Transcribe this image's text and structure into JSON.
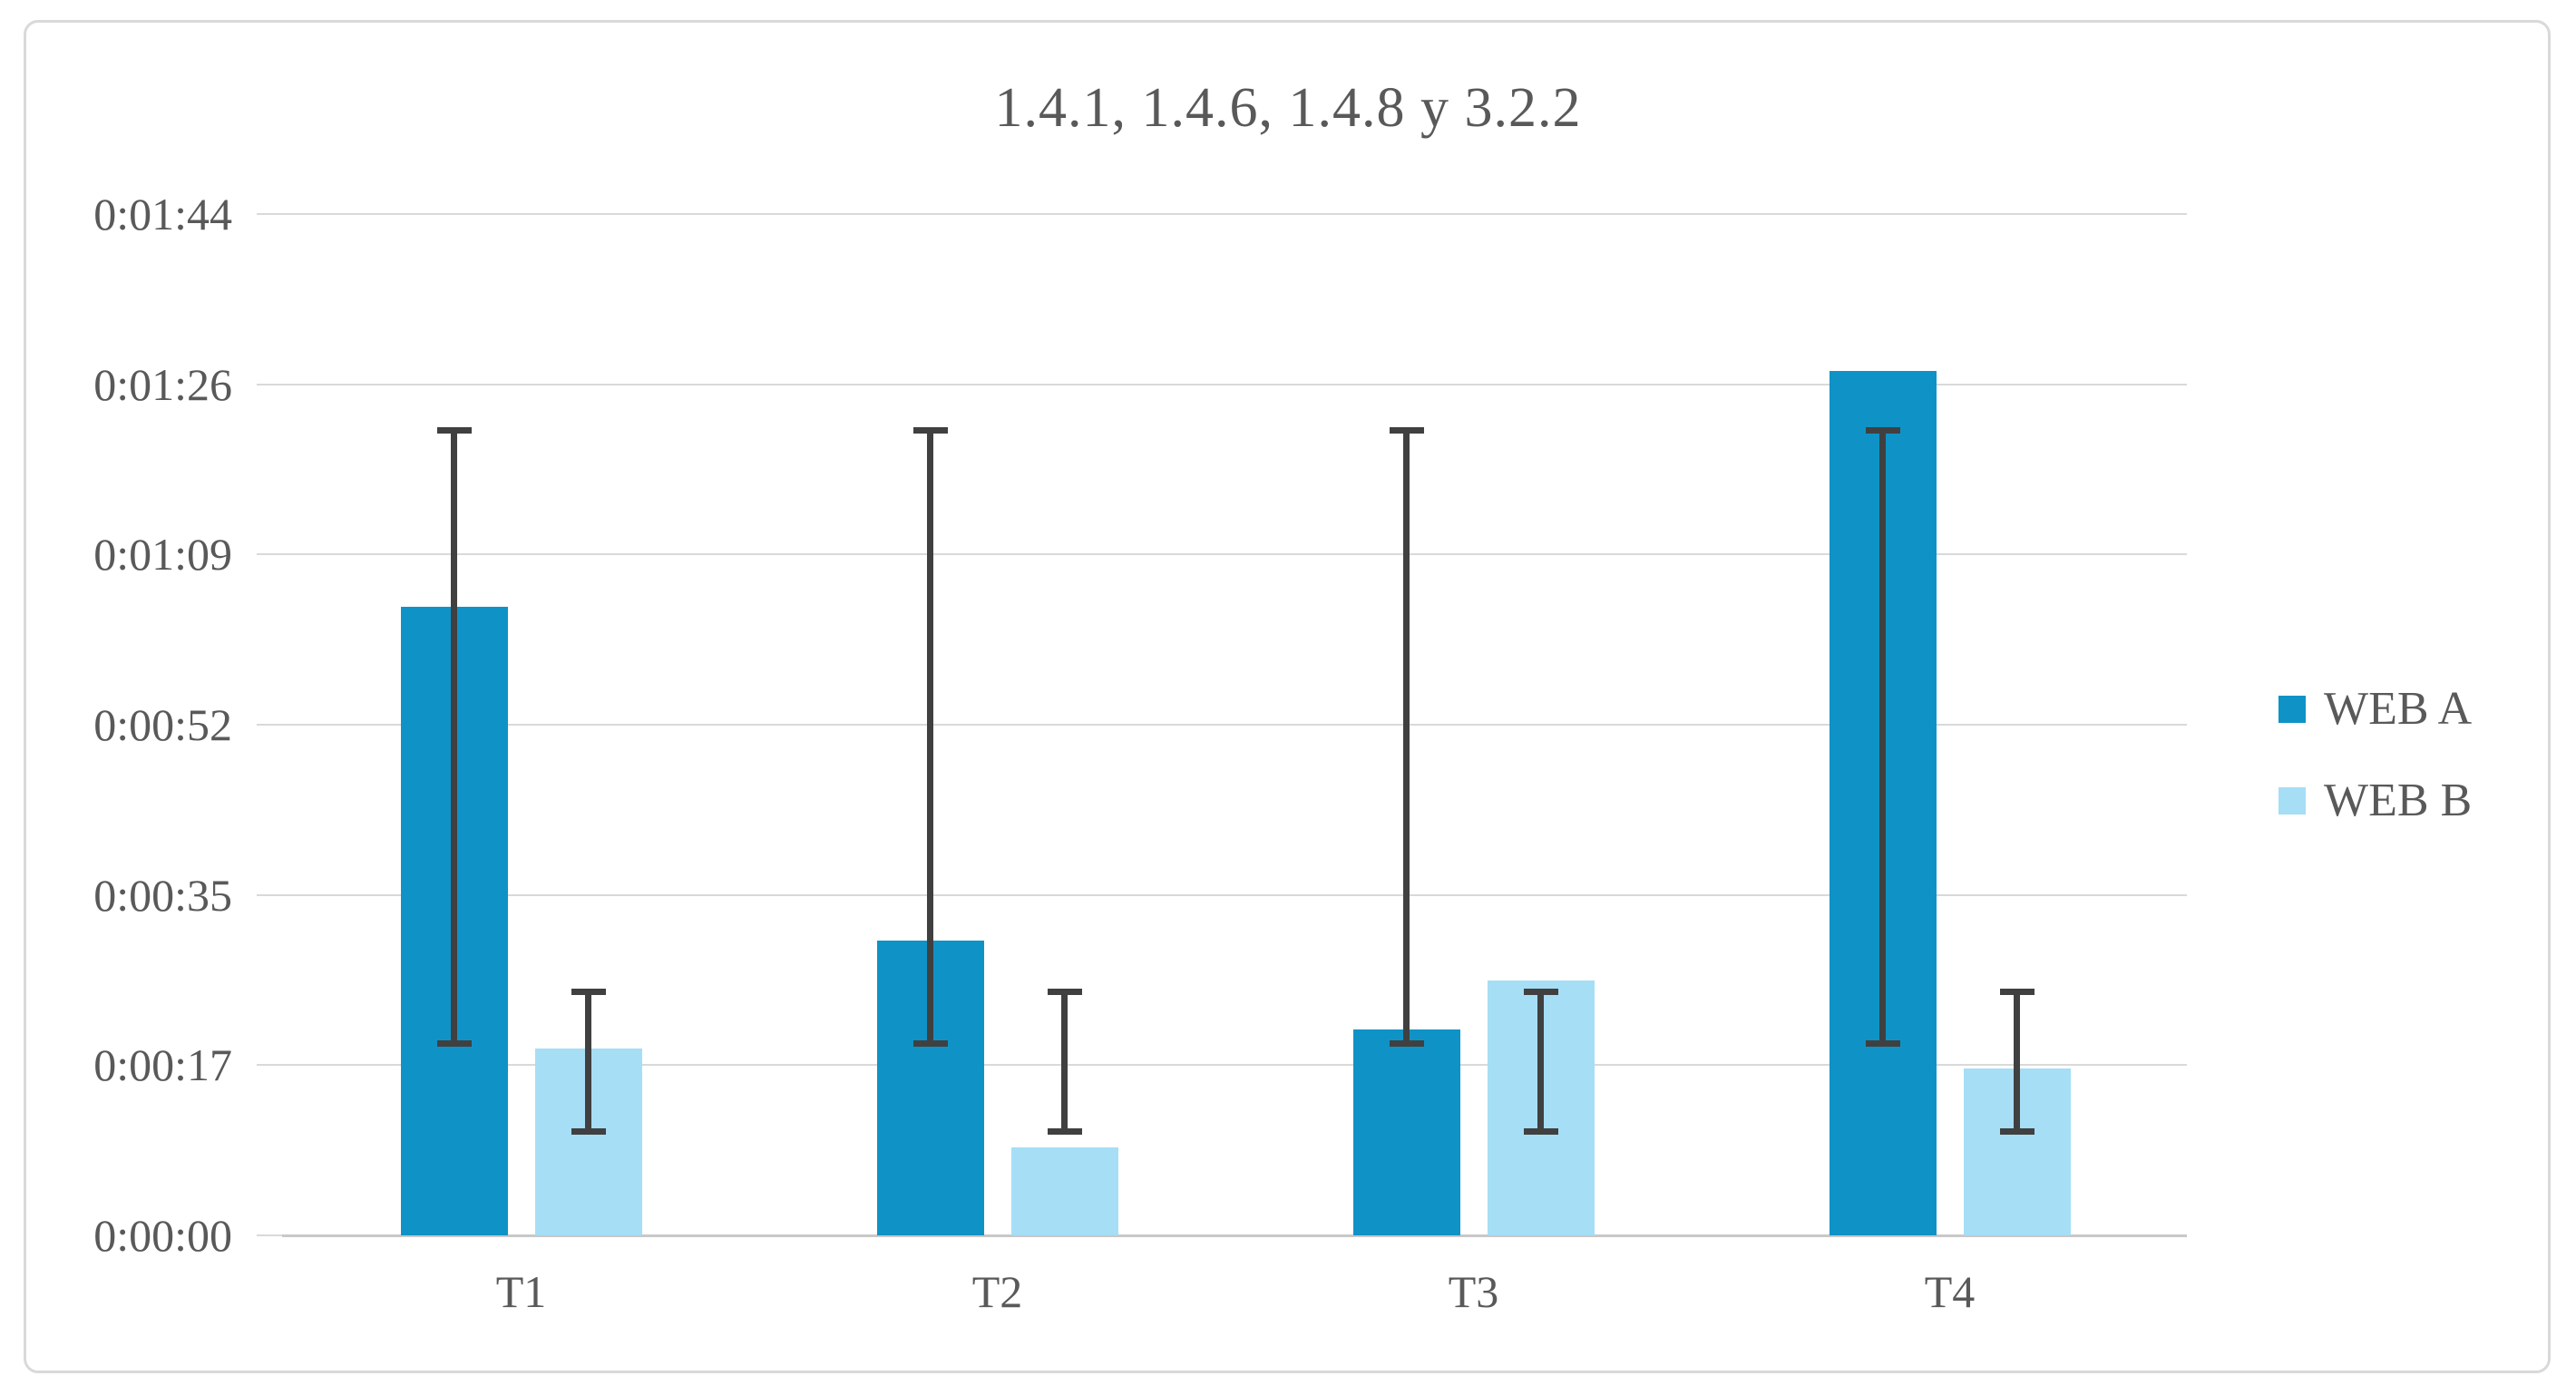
{
  "chart_data": {
    "type": "bar",
    "title": "1.4.1, 1.4.6, 1.4.8 y 3.2.2",
    "categories": [
      "T1",
      "T2",
      "T3",
      "T4"
    ],
    "series": [
      {
        "name": "WEB A",
        "color": "#0f93c6",
        "values_seconds": [
          64,
          30,
          21,
          88
        ],
        "values_time": [
          "0:01:04",
          "0:00:30",
          "0:00:21",
          "0:01:28"
        ],
        "error_bar": {
          "low_seconds": 19.5,
          "high_seconds": 82
        }
      },
      {
        "name": "WEB B",
        "color": "#a6def5",
        "values_seconds": [
          19,
          9,
          26,
          17
        ],
        "values_time": [
          "0:00:19",
          "0:00:09",
          "0:00:26",
          "0:00:17"
        ],
        "error_bar": {
          "low_seconds": 10.6,
          "high_seconds": 24.8
        }
      }
    ],
    "y_axis": {
      "min_seconds": 0,
      "max_seconds": 104,
      "ticks": [
        {
          "label": "0:00:00",
          "seconds": 0
        },
        {
          "label": "0:00:17",
          "seconds": 17.333
        },
        {
          "label": "0:00:35",
          "seconds": 34.667
        },
        {
          "label": "0:00:52",
          "seconds": 52
        },
        {
          "label": "0:01:09",
          "seconds": 69.333
        },
        {
          "label": "0:01:26",
          "seconds": 86.667
        },
        {
          "label": "0:01:44",
          "seconds": 104
        }
      ]
    },
    "legend": {
      "position": "right"
    },
    "grid": true,
    "colors": {
      "gridline": "#d9d9d9",
      "axis_line": "#c8c8c8",
      "error_bar": "#404040",
      "text": "#595959",
      "frame_border": "#d9d9d9",
      "background": "#ffffff"
    }
  }
}
